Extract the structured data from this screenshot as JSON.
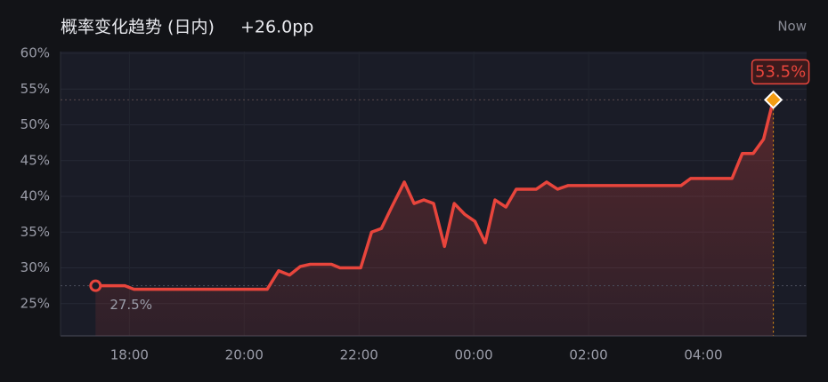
{
  "chart_data": {
    "type": "line",
    "title": "概率变化趋势 (日内)",
    "change": "+26.0pp",
    "now_label": "Now",
    "color": "#e8453c",
    "marker_color": "#f39c12",
    "grid": true,
    "x": [
      17.41,
      17.92,
      18.08,
      20.4,
      20.6,
      20.79,
      20.98,
      21.15,
      21.52,
      21.67,
      22.03,
      22.22,
      22.39,
      22.57,
      22.79,
      22.96,
      23.13,
      23.3,
      23.49,
      23.66,
      23.84,
      24.02,
      24.2,
      24.37,
      24.56,
      24.74,
      25.09,
      25.27,
      25.46,
      25.64,
      27.61,
      27.78,
      28.5,
      28.68,
      28.87,
      29.05,
      29.22
    ],
    "values": [
      27.5,
      27.5,
      27.0,
      27.0,
      29.6,
      29.0,
      30.2,
      30.5,
      30.5,
      30.0,
      30.0,
      35.0,
      35.5,
      38.5,
      42.0,
      39.0,
      39.5,
      39.0,
      33.0,
      39.0,
      37.5,
      36.5,
      33.5,
      39.5,
      38.5,
      41.0,
      41.0,
      42.0,
      41.0,
      41.5,
      41.5,
      42.5,
      42.5,
      46.0,
      46.0,
      48.0,
      53.5
    ],
    "value_labels": [
      "27.5%",
      null,
      null,
      null,
      null,
      null,
      null,
      null,
      null,
      null,
      null,
      null,
      null,
      null,
      null,
      null,
      null,
      null,
      null,
      null,
      null,
      null,
      null,
      null,
      null,
      null,
      null,
      null,
      null,
      null,
      null,
      null,
      null,
      null,
      null,
      null,
      "53.5%"
    ],
    "xlim": [
      16.8,
      29.8
    ],
    "xticks": [
      {
        "value": 18,
        "label": "18:00"
      },
      {
        "value": 20,
        "label": "20:00"
      },
      {
        "value": 22,
        "label": "22:00"
      },
      {
        "value": 24,
        "label": "00:00"
      },
      {
        "value": 26,
        "label": "02:00"
      },
      {
        "value": 28,
        "label": "04:00"
      }
    ],
    "ylim": [
      20.5,
      60
    ],
    "yticks": [
      {
        "value": 25,
        "label": "25%"
      },
      {
        "value": 30,
        "label": "30%"
      },
      {
        "value": 35,
        "label": "35%"
      },
      {
        "value": 40,
        "label": "40%"
      },
      {
        "value": 45,
        "label": "45%"
      },
      {
        "value": 50,
        "label": "50%"
      },
      {
        "value": 55,
        "label": "55%"
      },
      {
        "value": 60,
        "label": "60%"
      }
    ]
  }
}
